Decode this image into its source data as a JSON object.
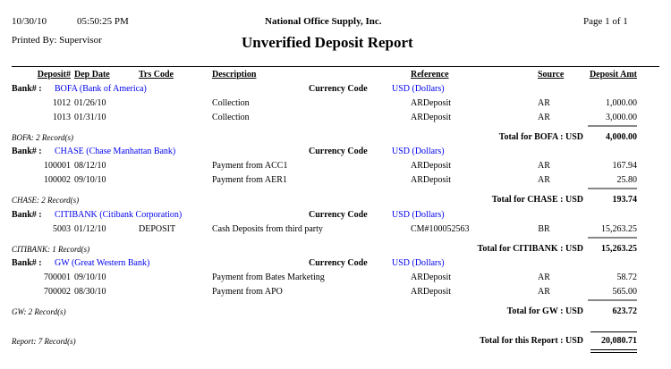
{
  "header": {
    "date": "10/30/10",
    "time": "05:50:25 PM",
    "company": "National Office Supply, Inc.",
    "page": "Page 1 of 1",
    "printed_by": "Printed By: Supervisor",
    "title": "Unverified Deposit Report"
  },
  "columns": {
    "deposit": "Deposit#",
    "dep_date": "Dep Date",
    "trs_code": "Trs Code",
    "description": "Description",
    "reference": "Reference",
    "source": "Source",
    "amount": "Deposit Amt"
  },
  "labels": {
    "bank": "Bank# :",
    "currency_code": "Currency Code"
  },
  "banks": [
    {
      "bank": "BOFA (Bank of America)",
      "currency": "USD (Dollars)",
      "rows": [
        {
          "deposit": "1012",
          "date": "01/26/10",
          "trs": "",
          "desc": "Collection",
          "ref": "ARDeposit",
          "source": "AR",
          "amount": "1,000.00"
        },
        {
          "deposit": "1013",
          "date": "01/31/10",
          "trs": "",
          "desc": "Collection",
          "ref": "ARDeposit",
          "source": "AR",
          "amount": "3,000.00"
        }
      ],
      "records": "BOFA: 2 Record(s)",
      "total_label": "Total for BOFA : USD",
      "total": "4,000.00"
    },
    {
      "bank": "CHASE (Chase Manhattan Bank)",
      "currency": "USD (Dollars)",
      "rows": [
        {
          "deposit": "100001",
          "date": "08/12/10",
          "trs": "",
          "desc": "Payment from ACC1",
          "ref": "ARDeposit",
          "source": "AR",
          "amount": "167.94"
        },
        {
          "deposit": "100002",
          "date": "09/10/10",
          "trs": "",
          "desc": "Payment from AER1",
          "ref": "ARDeposit",
          "source": "AR",
          "amount": "25.80"
        }
      ],
      "records": "CHASE: 2 Record(s)",
      "total_label": "Total for CHASE : USD",
      "total": "193.74"
    },
    {
      "bank": "CITIBANK (Citibank Corporation)",
      "currency": "USD (Dollars)",
      "rows": [
        {
          "deposit": "5003",
          "date": "01/12/10",
          "trs": "DEPOSIT",
          "desc": "Cash Deposits from third party",
          "ref": "CM#100052563",
          "source": "BR",
          "amount": "15,263.25"
        }
      ],
      "records": "CITIBANK: 1 Record(s)",
      "total_label": "Total for CITIBANK : USD",
      "total": "15,263.25"
    },
    {
      "bank": "GW (Great Western Bank)",
      "currency": "USD (Dollars)",
      "rows": [
        {
          "deposit": "700001",
          "date": "09/10/10",
          "trs": "",
          "desc": "Payment from Bates Marketing",
          "ref": "ARDeposit",
          "source": "AR",
          "amount": "58.72"
        },
        {
          "deposit": "700002",
          "date": "08/30/10",
          "trs": "",
          "desc": "Payment from APO",
          "ref": "ARDeposit",
          "source": "AR",
          "amount": "565.00"
        }
      ],
      "records": "GW: 2 Record(s)",
      "total_label": "Total for GW : USD",
      "total": "623.72"
    }
  ],
  "report": {
    "records": "Report: 7 Record(s)",
    "total_label": "Total for this Report : USD",
    "total": "20,080.71"
  }
}
